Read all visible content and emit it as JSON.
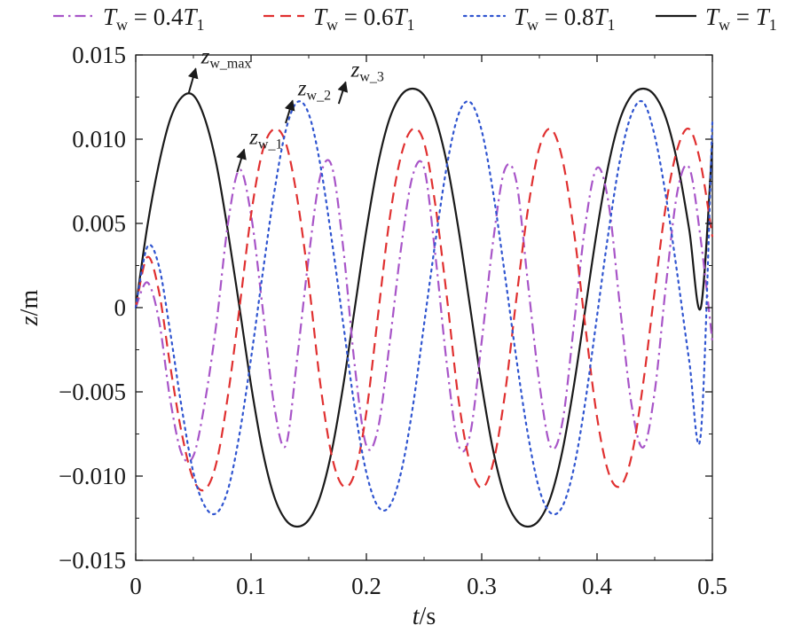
{
  "chart_data": {
    "type": "line",
    "xlabel": {
      "var": "t",
      "unit": "/s"
    },
    "ylabel": {
      "var": "z",
      "unit": "/m"
    },
    "xlim": [
      0,
      0.5
    ],
    "ylim": [
      -0.015,
      0.015
    ],
    "xticks": [
      0,
      0.1,
      0.2,
      0.3,
      0.4,
      0.5
    ],
    "xtick_labels": [
      "0",
      "0.1",
      "0.2",
      "0.3",
      "0.4",
      "0.5"
    ],
    "yticks": [
      0.015,
      0.01,
      0.005,
      0,
      -0.005,
      -0.01,
      -0.015
    ],
    "ytick_labels": [
      "0.015",
      "0.010",
      "0.005",
      "0",
      "−0.005",
      "−0.010",
      "−0.015"
    ],
    "grid": false,
    "legend_position": "top",
    "series": [
      {
        "name": "T_w = 0.4T_1",
        "legend": {
          "lhs": "T",
          "lhs_sub": "w",
          "coef": "0.4",
          "rhs": "T",
          "rhs_sub": "1"
        },
        "color": "#a855c8",
        "style": "dashdot",
        "x": [
          0,
          0.01,
          0.02,
          0.03,
          0.04,
          0.05,
          0.06,
          0.07,
          0.08,
          0.09,
          0.1,
          0.11,
          0.12,
          0.13,
          0.14,
          0.15,
          0.16,
          0.17,
          0.18,
          0.19,
          0.2,
          0.21,
          0.22,
          0.23,
          0.24,
          0.25,
          0.26,
          0.27,
          0.28,
          0.29,
          0.3,
          0.31,
          0.32,
          0.33,
          0.34,
          0.35,
          0.36,
          0.37,
          0.38,
          0.39,
          0.4,
          0.41,
          0.42,
          0.43,
          0.44,
          0.45,
          0.46,
          0.47,
          0.48,
          0.49,
          0.5
        ],
        "y": [
          0,
          0.0015,
          -0.0007,
          -0.0055,
          -0.0087,
          -0.0088,
          -0.0056,
          -0.0009,
          0.005,
          0.0082,
          0.0055,
          0.0,
          -0.0058,
          -0.0082,
          -0.003,
          0.003,
          0.0078,
          0.0084,
          0.0035,
          -0.0035,
          -0.0082,
          -0.0072,
          -0.0022,
          0.0035,
          0.0078,
          0.0083,
          0.003,
          -0.0035,
          -0.0082,
          -0.0075,
          -0.002,
          0.004,
          0.0082,
          0.0075,
          0.0015,
          -0.0045,
          -0.0083,
          -0.0068,
          -0.001,
          0.005,
          0.0083,
          0.0062,
          0.0,
          -0.0058,
          -0.0083,
          -0.005,
          0.0015,
          0.007,
          0.0083,
          0.004,
          -0.002
        ]
      },
      {
        "name": "T_w = 0.6T_1",
        "legend": {
          "lhs": "T",
          "lhs_sub": "w",
          "coef": "0.6",
          "rhs": "T",
          "rhs_sub": "1"
        },
        "color": "#e03030",
        "style": "dashed",
        "x": [
          0,
          0.01,
          0.02,
          0.03,
          0.04,
          0.05,
          0.06,
          0.07,
          0.08,
          0.09,
          0.1,
          0.11,
          0.12,
          0.13,
          0.14,
          0.15,
          0.16,
          0.17,
          0.18,
          0.19,
          0.2,
          0.21,
          0.22,
          0.23,
          0.24,
          0.25,
          0.26,
          0.27,
          0.28,
          0.29,
          0.3,
          0.31,
          0.32,
          0.33,
          0.34,
          0.35,
          0.36,
          0.37,
          0.38,
          0.39,
          0.4,
          0.41,
          0.42,
          0.43,
          0.44,
          0.45,
          0.46,
          0.47,
          0.48,
          0.49,
          0.5
        ],
        "y": [
          0,
          0.003,
          0.001,
          -0.0035,
          -0.0075,
          -0.0102,
          -0.0108,
          -0.0092,
          -0.0052,
          0.0,
          0.0055,
          0.0093,
          0.0106,
          0.0098,
          0.0065,
          0.0015,
          -0.0045,
          -0.0088,
          -0.0106,
          -0.0098,
          -0.0062,
          -0.0005,
          0.0052,
          0.009,
          0.0106,
          0.0098,
          0.006,
          0.0005,
          -0.0055,
          -0.0093,
          -0.0107,
          -0.0092,
          -0.0052,
          0.0005,
          0.0058,
          0.0095,
          0.0106,
          0.0088,
          0.0045,
          -0.0012,
          -0.0065,
          -0.0098,
          -0.0106,
          -0.0088,
          -0.0045,
          0.001,
          0.0062,
          0.0095,
          0.0106,
          0.0085,
          0.0042
        ]
      },
      {
        "name": "T_w = 0.8T_1",
        "legend": {
          "lhs": "T",
          "lhs_sub": "w",
          "coef": "0.8",
          "rhs": "T",
          "rhs_sub": "1"
        },
        "color": "#3055d0",
        "style": "dotted",
        "x": [
          0,
          0.01,
          0.02,
          0.03,
          0.04,
          0.05,
          0.06,
          0.07,
          0.08,
          0.09,
          0.1,
          0.11,
          0.12,
          0.13,
          0.14,
          0.15,
          0.16,
          0.17,
          0.18,
          0.19,
          0.2,
          0.21,
          0.22,
          0.23,
          0.24,
          0.25,
          0.26,
          0.27,
          0.28,
          0.29,
          0.3,
          0.31,
          0.32,
          0.33,
          0.34,
          0.35,
          0.36,
          0.37,
          0.38,
          0.39,
          0.4,
          0.41,
          0.42,
          0.43,
          0.44,
          0.45,
          0.46,
          0.47,
          0.48,
          0.49,
          0.5
        ],
        "y": [
          0,
          0.0036,
          0.0025,
          -0.0015,
          -0.006,
          -0.0098,
          -0.0118,
          -0.0122,
          -0.0108,
          -0.0075,
          -0.003,
          0.002,
          0.0068,
          0.0105,
          0.0122,
          0.0115,
          0.0085,
          0.004,
          -0.001,
          -0.006,
          -0.0098,
          -0.0118,
          -0.0118,
          -0.0098,
          -0.006,
          -0.001,
          0.004,
          0.0085,
          0.0115,
          0.0122,
          0.0105,
          0.0068,
          0.002,
          -0.003,
          -0.0075,
          -0.0108,
          -0.0122,
          -0.0118,
          -0.0095,
          -0.0055,
          -0.0005,
          0.0045,
          0.0088,
          0.0115,
          0.0122,
          0.0102,
          0.0065,
          0.0018,
          -0.0032,
          -0.0075,
          0.011
        ]
      },
      {
        "name": "T_w = T_1",
        "legend": {
          "lhs": "T",
          "lhs_sub": "w",
          "coef": "",
          "rhs": "T",
          "rhs_sub": "1"
        },
        "color": "#1a1a1a",
        "style": "solid",
        "x": [
          0,
          0.01,
          0.02,
          0.03,
          0.04,
          0.05,
          0.06,
          0.07,
          0.08,
          0.09,
          0.1,
          0.11,
          0.12,
          0.13,
          0.14,
          0.15,
          0.16,
          0.17,
          0.18,
          0.19,
          0.2,
          0.21,
          0.22,
          0.23,
          0.24,
          0.25,
          0.26,
          0.27,
          0.28,
          0.29,
          0.3,
          0.31,
          0.32,
          0.33,
          0.34,
          0.35,
          0.36,
          0.37,
          0.38,
          0.39,
          0.4,
          0.41,
          0.42,
          0.43,
          0.44,
          0.45,
          0.46,
          0.47,
          0.48,
          0.49,
          0.5
        ],
        "y": [
          0,
          0.0048,
          0.0085,
          0.0112,
          0.0125,
          0.0126,
          0.0112,
          0.0085,
          0.0045,
          0.0,
          -0.0046,
          -0.0085,
          -0.0112,
          -0.0126,
          -0.013,
          -0.0126,
          -0.0112,
          -0.0085,
          -0.0046,
          0.0,
          0.0046,
          0.0085,
          0.0112,
          0.0126,
          0.013,
          0.0126,
          0.0112,
          0.0085,
          0.0046,
          0.0,
          -0.0046,
          -0.0085,
          -0.0112,
          -0.0126,
          -0.013,
          -0.0126,
          -0.0112,
          -0.0085,
          -0.0046,
          0.0,
          0.0046,
          0.0085,
          0.0112,
          0.0126,
          0.013,
          0.0126,
          0.0112,
          0.0085,
          0.0046,
          0.0,
          0.0098
        ]
      }
    ],
    "annotations": [
      {
        "label": "z",
        "sub": "w_max",
        "x": 0.046,
        "y": 0.01275,
        "tx": 0.052,
        "ty": 0.0144
      },
      {
        "label": "z",
        "sub": "w_1",
        "x": 0.088,
        "y": 0.00805,
        "tx": 0.094,
        "ty": 0.0096
      },
      {
        "label": "z",
        "sub": "w_2",
        "x": 0.13,
        "y": 0.01095,
        "tx": 0.136,
        "ty": 0.0125
      },
      {
        "label": "z",
        "sub": "w_3",
        "x": 0.176,
        "y": 0.0121,
        "tx": 0.182,
        "ty": 0.0136
      }
    ]
  }
}
